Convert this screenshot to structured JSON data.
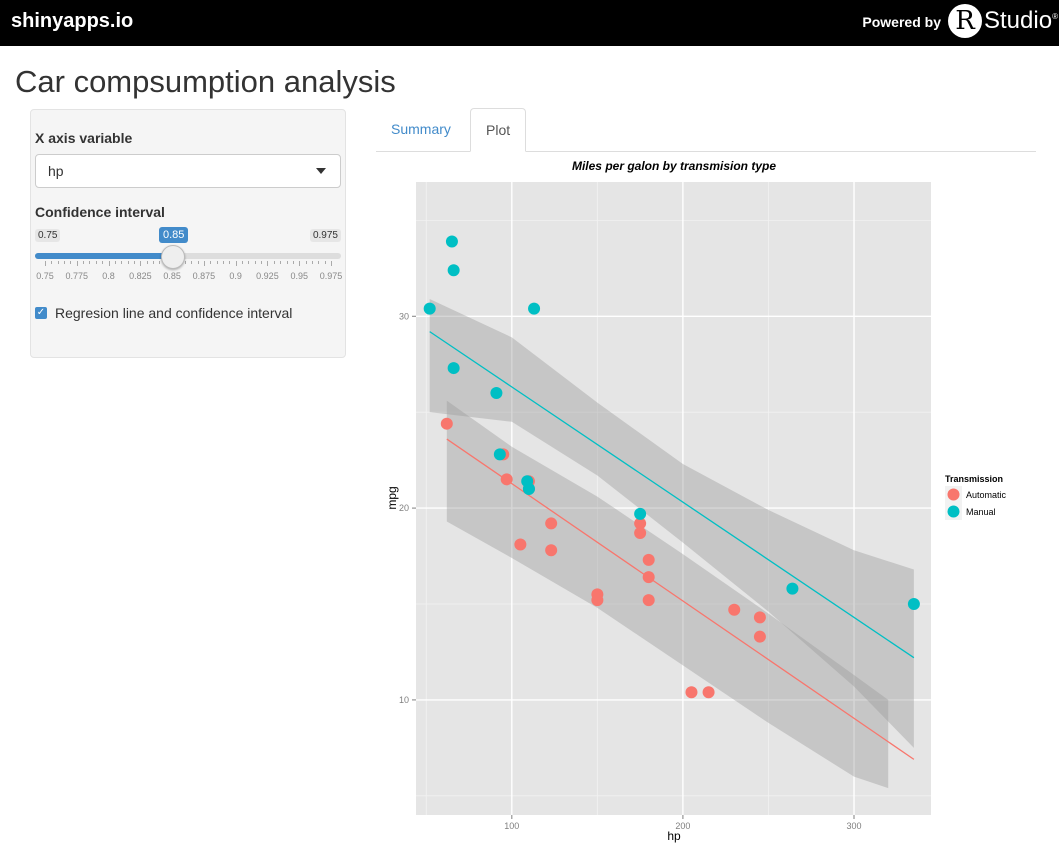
{
  "header": {
    "brand": "shinyapps.io",
    "powered_by": "Powered by",
    "logo_letter": "R",
    "logo_text": "Studio",
    "logo_mark": "®"
  },
  "page": {
    "title": "Car compsumption analysis"
  },
  "sidebar": {
    "x_label": "X axis variable",
    "x_value": "hp",
    "ci_label": "Confidence interval",
    "ci_min": "0.75",
    "ci_max": "0.975",
    "ci_value": "0.85",
    "ci_ticks": [
      "0.75",
      "0.775",
      "0.8",
      "0.825",
      "0.85",
      "0.875",
      "0.9",
      "0.925",
      "0.95",
      "0.975"
    ],
    "checkbox_label": "Regresion line and confidence interval"
  },
  "tabs": [
    {
      "label": "Summary"
    },
    {
      "label": "Plot"
    }
  ],
  "chart_data": {
    "type": "scatter",
    "title": "Miles per galon by transmision type",
    "xlabel": "hp",
    "ylabel": "mpg",
    "xlim": [
      44,
      345
    ],
    "ylim": [
      4,
      37
    ],
    "xticks": [
      100,
      200,
      300
    ],
    "yticks": [
      10,
      20,
      30
    ],
    "grid": true,
    "legend": {
      "title": "Transmission",
      "position": "right"
    },
    "series": [
      {
        "name": "Automatic",
        "color": "#f8766d",
        "points": [
          [
            110,
            21.4
          ],
          [
            175,
            18.7
          ],
          [
            105,
            18.1
          ],
          [
            245,
            14.3
          ],
          [
            62,
            24.4
          ],
          [
            95,
            22.8
          ],
          [
            123,
            19.2
          ],
          [
            123,
            17.8
          ],
          [
            180,
            16.4
          ],
          [
            180,
            17.3
          ],
          [
            180,
            15.2
          ],
          [
            205,
            10.4
          ],
          [
            215,
            10.4
          ],
          [
            230,
            14.7
          ],
          [
            97,
            21.5
          ],
          [
            150,
            15.5
          ],
          [
            150,
            15.2
          ],
          [
            245,
            13.3
          ],
          [
            175,
            19.2
          ]
        ],
        "fit": [
          [
            62,
            23.6
          ],
          [
            335,
            6.9
          ]
        ],
        "band": {
          "x": [
            62,
            100,
            150,
            200,
            250,
            300,
            320
          ],
          "lower": [
            19.3,
            17.4,
            14.8,
            11.8,
            8.8,
            6.0,
            5.4
          ],
          "upper": [
            25.6,
            23.2,
            20.6,
            17.6,
            14.5,
            11.3,
            10.0
          ]
        }
      },
      {
        "name": "Manual",
        "color": "#00bfc4",
        "points": [
          [
            110,
            21
          ],
          [
            110,
            21
          ],
          [
            93,
            22.8
          ],
          [
            66,
            32.4
          ],
          [
            52,
            30.4
          ],
          [
            65,
            33.9
          ],
          [
            66,
            27.3
          ],
          [
            91,
            26
          ],
          [
            113,
            30.4
          ],
          [
            264,
            15.8
          ],
          [
            175,
            19.7
          ],
          [
            335,
            15
          ],
          [
            109,
            21.4
          ]
        ],
        "fit": [
          [
            52,
            29.2
          ],
          [
            335,
            12.2
          ]
        ],
        "band": {
          "x": [
            52,
            100,
            150,
            200,
            250,
            300,
            335
          ],
          "lower": [
            25.0,
            24.5,
            21.7,
            18.2,
            14.6,
            10.7,
            7.5
          ],
          "upper": [
            30.9,
            28.9,
            25.5,
            22.3,
            19.9,
            17.8,
            16.8
          ]
        }
      }
    ]
  }
}
